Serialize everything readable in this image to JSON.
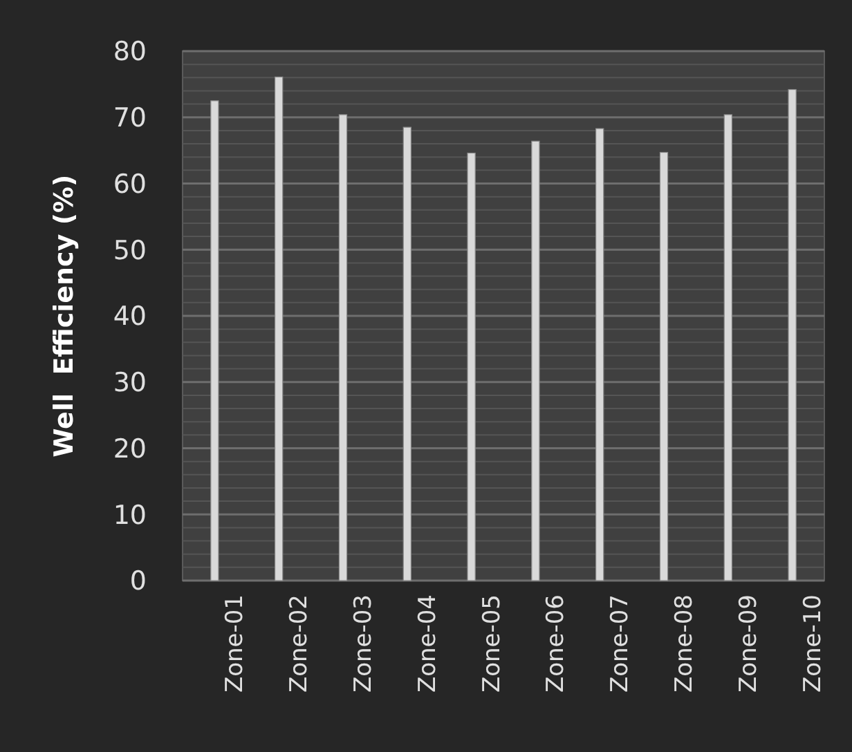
{
  "chart_data": {
    "type": "bar",
    "ylabel": "Well  Efficiency (%)",
    "categories": [
      "Zone-01",
      "Zone-02",
      "Zone-03",
      "Zone-04",
      "Zone-05",
      "Zone-06",
      "Zone-07",
      "Zone-08",
      "Zone-09",
      "Zone-10"
    ],
    "values": [
      72.5,
      76.1,
      70.4,
      68.5,
      64.6,
      66.4,
      68.3,
      64.7,
      70.4,
      74.2
    ],
    "color": "#d9d9d9",
    "ylim": [
      0,
      80
    ],
    "yticks": [
      0,
      {
        "value": 2,
        "label": null
      },
      {
        "value": 4,
        "label": null
      },
      {
        "value": 6,
        "label": null
      },
      {
        "value": 8,
        "label": null
      },
      10,
      {
        "value": 12,
        "label": null
      },
      {
        "value": 14,
        "label": null
      },
      {
        "value": 16,
        "label": null
      },
      {
        "value": 18,
        "label": null
      },
      20,
      {
        "value": 22,
        "label": null
      },
      {
        "value": 24,
        "label": null
      },
      {
        "value": 26,
        "label": null
      },
      {
        "value": 28,
        "label": null
      },
      30,
      {
        "value": 32,
        "label": null
      },
      {
        "value": 34,
        "label": null
      },
      {
        "value": 36,
        "label": null
      },
      {
        "value": 38,
        "label": null
      },
      40,
      {
        "value": 42,
        "label": null
      },
      {
        "value": 44,
        "label": null
      },
      {
        "value": 46,
        "label": null
      },
      {
        "value": 48,
        "label": null
      },
      50,
      {
        "value": 52,
        "label": null
      },
      {
        "value": 54,
        "label": null
      },
      {
        "value": 56,
        "label": null
      },
      {
        "value": 58,
        "label": null
      },
      60,
      {
        "value": 62,
        "label": null
      },
      {
        "value": 64,
        "label": null
      },
      {
        "value": 66,
        "label": null
      },
      {
        "value": 68,
        "label": null
      },
      70,
      {
        "value": 72,
        "label": null
      },
      {
        "value": 74,
        "label": null
      },
      {
        "value": 76,
        "label": null
      },
      {
        "value": 78,
        "label": null
      },
      80
    ],
    "grid": true
  }
}
